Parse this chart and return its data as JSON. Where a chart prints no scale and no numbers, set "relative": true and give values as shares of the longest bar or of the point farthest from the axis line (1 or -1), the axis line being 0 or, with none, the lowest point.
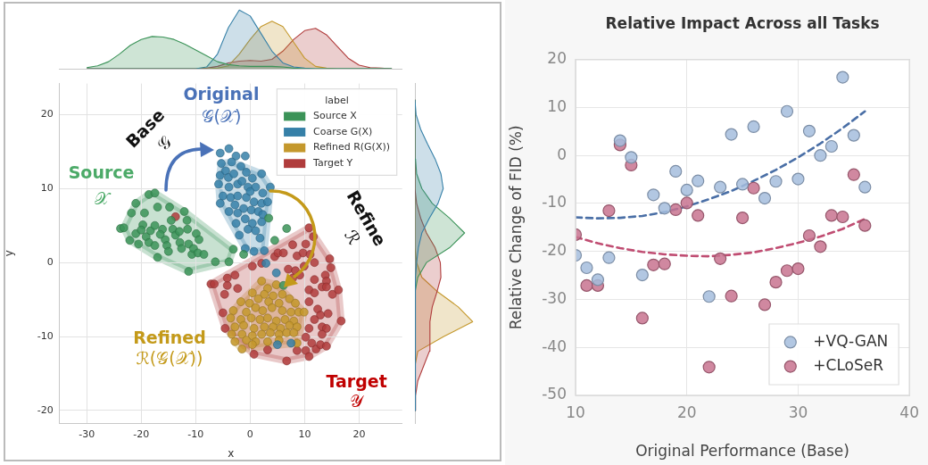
{
  "chart_data": [
    {
      "type": "area",
      "relative": true,
      "tick_labels": false,
      "xlim": [
        -35,
        27.9
      ],
      "x": [
        -30,
        -28,
        -26,
        -24,
        -22,
        -20,
        -18,
        -16,
        -14,
        -12,
        -10,
        -8,
        -6,
        -4,
        -2,
        0,
        2,
        4,
        6,
        8,
        10,
        12,
        14,
        16,
        18,
        20,
        22,
        24,
        26
      ],
      "series": [
        {
          "color": "#3b9358",
          "values": [
            0.02,
            0.05,
            0.12,
            0.25,
            0.4,
            0.5,
            0.55,
            0.54,
            0.5,
            0.42,
            0.32,
            0.22,
            0.12,
            0.07,
            0.05,
            0.04,
            0.04,
            0.04,
            0.03,
            0.01,
            0,
            0,
            0,
            0,
            0,
            0,
            0,
            0,
            0
          ]
        },
        {
          "color": "#3680a8",
          "values": [
            0,
            0,
            0,
            0,
            0,
            0,
            0,
            0,
            0,
            0,
            0,
            0.03,
            0.25,
            0.7,
            1.0,
            0.9,
            0.6,
            0.3,
            0.1,
            0.03,
            0.01,
            0,
            0,
            0,
            0,
            0,
            0,
            0,
            0
          ]
        },
        {
          "color": "#c4982c",
          "values": [
            0,
            0,
            0,
            0,
            0,
            0,
            0,
            0,
            0,
            0,
            0,
            0,
            0.01,
            0.05,
            0.25,
            0.5,
            0.72,
            0.81,
            0.72,
            0.45,
            0.18,
            0.04,
            0.01,
            0,
            0,
            0,
            0,
            0,
            0
          ]
        },
        {
          "color": "#b03c3c",
          "values": [
            0,
            0,
            0,
            0,
            0,
            0,
            0,
            0,
            0,
            0,
            0,
            0.01,
            0.04,
            0.1,
            0.13,
            0.14,
            0.13,
            0.16,
            0.3,
            0.5,
            0.65,
            0.69,
            0.58,
            0.38,
            0.18,
            0.06,
            0.02,
            0.01,
            0
          ]
        }
      ]
    },
    {
      "type": "scatter",
      "xlabel": "x",
      "ylabel": "y",
      "legend_title": "label",
      "legend": "top right",
      "grid": true,
      "marker": "circle",
      "xlim": [
        -35,
        27.9
      ],
      "ylim": [
        -21.7,
        24.2
      ],
      "xticks": [
        -30,
        -20,
        -10,
        0,
        10,
        20
      ],
      "yticks": [
        -20,
        -10,
        0,
        10,
        20
      ],
      "series": [
        {
          "name": "Source X",
          "color": "#3b9358",
          "x": [
            -23.8,
            -23.2,
            -22.1,
            -21.0,
            -20.5,
            -19.7,
            -19.1,
            -18.6,
            -18.3,
            -17.5,
            -17.5,
            -17.0,
            -17.0,
            -16.1,
            -15.6,
            -15.3,
            -14.8,
            -14.5,
            -14.2,
            -13.7,
            -12.9,
            -12.6,
            -12.1,
            -11.6,
            -11.5,
            -11.3,
            -10.7,
            -10.4,
            -9.9,
            -9.6,
            -9.4,
            -8.5,
            -11.3,
            -6.4,
            -3.9,
            -3.1,
            -1.2,
            -18.6,
            -17.5,
            -21.0,
            -19.4,
            -21.8,
            3.4,
            4.5,
            6.7,
            6.1,
            -16.5,
            -13.0,
            -20.0,
            -15.0
          ],
          "values": [
            4.6,
            4.7,
            3.0,
            3.9,
            2.5,
            5.1,
            3.5,
            2.7,
            4.3,
            2.3,
            5.0,
            0.7,
            7.5,
            4.5,
            3.1,
            2.3,
            7.5,
            5.7,
            4.5,
            3.7,
            2.7,
            1.9,
            6.9,
            5.7,
            4.5,
            2.5,
            1.1,
            1.9,
            3.9,
            1.3,
            3.1,
            1.1,
            -1.2,
            0.1,
            0.1,
            1.8,
            1.1,
            9.2,
            9.4,
            8.0,
            6.7,
            6.7,
            6.0,
            3.0,
            4.6,
            -3.1,
            3.8,
            4.2,
            4.4,
            1.5
          ]
        },
        {
          "name": "Coarse G(X)",
          "color": "#3680a8",
          "x": [
            -5.5,
            -3.9,
            -5.3,
            -2.6,
            -0.9,
            -5.5,
            -4.5,
            -3.4,
            -1.7,
            -0.7,
            0.4,
            2.1,
            -5.8,
            -3.9,
            -2.3,
            -0.4,
            1.0,
            2.3,
            3.7,
            -5.0,
            -3.6,
            -2.3,
            -0.7,
            0.7,
            2.1,
            3.2,
            -5.5,
            -2.8,
            -1.2,
            0.2,
            1.5,
            2.3,
            -3.9,
            -2.3,
            -0.9,
            0.4,
            2.1,
            -2.6,
            -0.4,
            1.0,
            -2.0,
            1.8,
            -0.9,
            0.7,
            2.6,
            2.9,
            4.8,
            5.0,
            7.5,
            -4.0,
            -1.5,
            0.0,
            -3.0
          ],
          "values": [
            14.8,
            15.4,
            13.4,
            14.4,
            14.4,
            11.8,
            12.4,
            13.6,
            13.0,
            12.2,
            11.4,
            12.0,
            10.6,
            10.2,
            10.6,
            10.2,
            10.2,
            9.4,
            10.2,
            9.0,
            8.8,
            9.0,
            8.8,
            8.2,
            8.0,
            8.2,
            8.0,
            7.8,
            7.3,
            7.1,
            6.9,
            6.5,
            6.9,
            6.7,
            5.9,
            5.3,
            5.5,
            5.3,
            4.5,
            4.3,
            3.7,
            3.3,
            1.9,
            1.5,
            1.6,
            -0.1,
            -1.4,
            -11.1,
            -10.9,
            11.5,
            11.0,
            9.6,
            12.0
          ]
        },
        {
          "name": "Refined R(G(X))",
          "color": "#c4982c",
          "x": [
            2.1,
            4.8,
            3.2,
            0.4,
            2.6,
            4.2,
            5.9,
            7.2,
            -1.7,
            -0.1,
            1.5,
            3.4,
            5.3,
            8.3,
            -3.1,
            -0.7,
            1.0,
            2.3,
            4.0,
            5.9,
            7.5,
            8.9,
            9.9,
            -3.6,
            -1.7,
            0.2,
            1.8,
            3.2,
            4.8,
            6.4,
            8.0,
            -2.8,
            -1.2,
            0.7,
            2.6,
            4.2,
            5.6,
            7.2,
            8.6,
            -3.4,
            -1.5,
            0.4,
            2.1,
            3.7,
            5.3,
            6.7,
            8.0,
            -2.8,
            -0.7,
            1.0,
            3.2,
            5.3,
            8.6,
            -1.5,
            0.4
          ],
          "values": [
            -2.5,
            -3.0,
            -3.5,
            -4.1,
            -4.3,
            -4.5,
            -4.3,
            -4.9,
            -5.3,
            -5.5,
            -4.9,
            -5.3,
            -5.5,
            -5.5,
            -6.5,
            -6.7,
            -6.1,
            -6.5,
            -6.1,
            -6.5,
            -6.7,
            -6.7,
            -6.7,
            -7.5,
            -7.7,
            -7.5,
            -7.7,
            -7.5,
            -7.9,
            -7.7,
            -7.9,
            -8.7,
            -8.5,
            -8.9,
            -8.7,
            -8.7,
            -8.9,
            -8.5,
            -8.7,
            -9.7,
            -9.7,
            -9.9,
            -9.7,
            -9.5,
            -9.7,
            -9.5,
            -9.5,
            -10.7,
            -10.5,
            -10.7,
            -10.7,
            -10.5,
            -10.9,
            -11.7,
            -11.1
          ]
        },
        {
          "name": "Target Y",
          "color": "#b03c3c",
          "x": [
            -7.2,
            -6.6,
            -4.7,
            -4.2,
            -2.8,
            -2.3,
            0.4,
            2.1,
            4.5,
            5.1,
            6.1,
            7.8,
            8.6,
            9.7,
            10.2,
            10.8,
            11.6,
            11.0,
            11.8,
            7.0,
            8.3,
            9.9,
            7.8,
            9.1,
            11.8,
            13.8,
            14.8,
            14.6,
            14.0,
            10.8,
            11.8,
            13.2,
            14.0,
            15.1,
            16.2,
            10.8,
            12.4,
            12.9,
            14.3,
            11.8,
            13.2,
            14.0,
            16.7,
            10.2,
            11.3,
            12.1,
            12.9,
            14.0,
            10.2,
            8.6,
            6.7,
            10.8,
            0.7,
            3.2,
            -5.0,
            -4.6,
            -13.7,
            -4.2,
            10.8,
            13.2
          ],
          "values": [
            -2.9,
            -2.9,
            -4.3,
            -3.1,
            -1.7,
            -3.5,
            -0.5,
            -0.1,
            0.8,
            1.3,
            1.3,
            2.4,
            0.9,
            1.3,
            2.5,
            4.7,
            3.5,
            1.1,
            0.0,
            -0.9,
            -1.1,
            -0.5,
            -2.1,
            -1.7,
            -2.3,
            -1.7,
            -0.7,
            0.5,
            -2.5,
            -3.7,
            -4.1,
            -3.3,
            -3.3,
            -4.3,
            -3.7,
            -5.3,
            -6.3,
            -7.1,
            -6.9,
            -7.7,
            -8.7,
            -8.9,
            -7.9,
            -10.1,
            -10.9,
            -11.7,
            -11.1,
            -11.3,
            -11.9,
            -11.9,
            -13.3,
            -12.7,
            -12.4,
            -11.8,
            -6.8,
            -8.9,
            6.2,
            -2.1,
            -8.9,
            -9.7
          ]
        }
      ],
      "annotations": [
        "Source",
        "𝒳",
        "Original",
        "𝒢(𝒳)",
        "Base",
        "𝒢",
        "Refine",
        "ℛ",
        "Refined",
        "ℛ(𝒢(𝒳))",
        "Target",
        "𝒴"
      ]
    },
    {
      "type": "area",
      "relative": true,
      "orientation": "horizontal",
      "tick_labels": false,
      "ylim": [
        -21.7,
        24.2
      ],
      "x": [
        -20,
        -18,
        -16,
        -14,
        -12,
        -10,
        -8,
        -6,
        -4,
        -2,
        0,
        2,
        4,
        6,
        8,
        10,
        12,
        14,
        16,
        18,
        20,
        22
      ],
      "series": [
        {
          "color": "#3680a8",
          "values": [
            0,
            0,
            0.01,
            0.01,
            0.01,
            0.01,
            0.01,
            0.01,
            0.01,
            0.01,
            0.03,
            0.06,
            0.12,
            0.25,
            0.4,
            0.49,
            0.45,
            0.35,
            0.22,
            0.1,
            0.02,
            0
          ]
        },
        {
          "color": "#3b9358",
          "values": [
            0,
            0,
            0,
            0,
            0,
            0,
            0,
            0,
            0.01,
            0.05,
            0.2,
            0.6,
            0.86,
            0.6,
            0.3,
            0.12,
            0.03,
            0.01,
            0,
            0,
            0,
            0
          ]
        },
        {
          "color": "#b03c3c",
          "values": [
            0,
            0.01,
            0.05,
            0.15,
            0.25,
            0.26,
            0.26,
            0.3,
            0.38,
            0.45,
            0.44,
            0.35,
            0.2,
            0.1,
            0.03,
            0,
            0,
            0,
            0,
            0,
            0,
            0
          ]
        },
        {
          "color": "#c4982c",
          "values": [
            0,
            0,
            0,
            0,
            0.05,
            0.5,
            1.0,
            0.75,
            0.4,
            0.12,
            0.03,
            0,
            0,
            0,
            0,
            0,
            0,
            0,
            0,
            0,
            0,
            0
          ]
        }
      ]
    },
    {
      "type": "scatter",
      "title": "Relative Impact Across all Tasks",
      "xlabel": "Original Performance (Base)",
      "ylabel": "Relative Change of FID (%)",
      "legend": "bottom right",
      "grid": true,
      "marker": "circle",
      "xlim": [
        10,
        40
      ],
      "ylim": [
        -50,
        20
      ],
      "xticks": [
        10,
        20,
        30,
        40
      ],
      "yticks": [
        -50,
        -40,
        -30,
        -20,
        -10,
        0,
        10,
        20
      ],
      "x": [
        10,
        11,
        12,
        13,
        14,
        15,
        16,
        17,
        18,
        19,
        20,
        21,
        22,
        23,
        24,
        25,
        26,
        27,
        28,
        29,
        30,
        31,
        32,
        33,
        34,
        35,
        36
      ],
      "series": [
        {
          "name": "+VQ-GAN",
          "color": "#a5bddd",
          "values": [
            -20.8,
            -23.4,
            -25.9,
            -21.3,
            3.1,
            -0.4,
            -24.9,
            -8.2,
            -11.0,
            -3.3,
            -7.2,
            -5.3,
            -29.4,
            -6.6,
            4.4,
            -6.0,
            6.0,
            -8.9,
            -5.4,
            9.2,
            -4.9,
            5.1,
            0.0,
            1.9,
            16.3,
            4.2,
            -6.6
          ]
        },
        {
          "name": "+CLoSeR",
          "color": "#c8738f",
          "values": [
            -16.5,
            -27.1,
            -27.1,
            -11.5,
            2.2,
            -2.0,
            -33.9,
            -22.8,
            -22.6,
            -11.3,
            -9.9,
            -12.5,
            -44.1,
            -21.5,
            -29.3,
            -13.0,
            -6.8,
            -31.1,
            -26.4,
            -24.0,
            -23.6,
            -16.7,
            -19.0,
            -12.5,
            -12.8,
            -4.0,
            -14.6
          ]
        },
        {
          "type": "line",
          "line_style": "dashed",
          "marker": "none",
          "color": "#4a6fa6",
          "x": [
            10,
            12,
            14,
            16,
            18,
            20,
            22,
            24,
            26,
            28,
            30,
            32,
            34,
            36
          ],
          "values": [
            -12.9,
            -13.1,
            -13.0,
            -12.6,
            -11.8,
            -10.6,
            -9.1,
            -7.4,
            -5.3,
            -3.0,
            -0.4,
            2.5,
            5.7,
            9.2
          ]
        },
        {
          "type": "line",
          "line_style": "dashed",
          "marker": "none",
          "color": "#c04d72",
          "x": [
            10,
            12,
            14,
            16,
            18,
            20,
            22,
            24,
            26,
            28,
            30,
            32,
            34,
            36
          ],
          "values": [
            -17.0,
            -18.3,
            -19.3,
            -20.1,
            -20.6,
            -20.9,
            -21.0,
            -20.7,
            -20.2,
            -19.3,
            -18.2,
            -16.9,
            -15.3,
            -13.2
          ]
        }
      ]
    }
  ]
}
